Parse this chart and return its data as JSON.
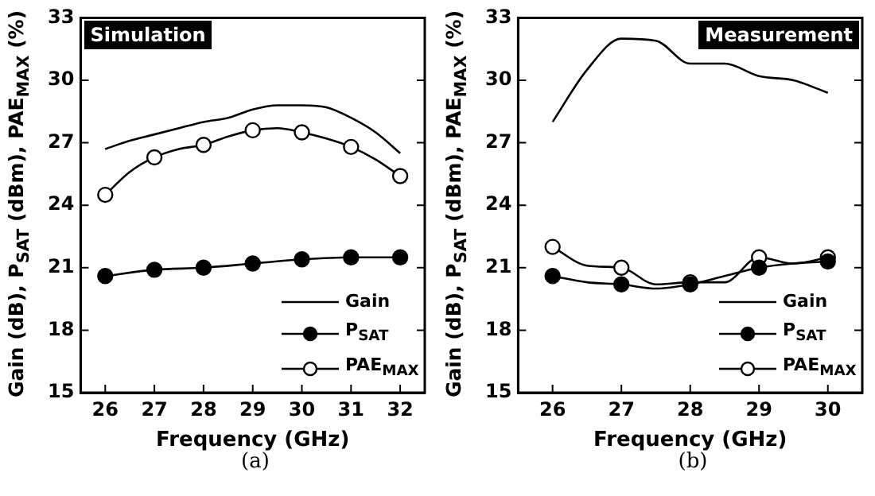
{
  "chart_data": [
    {
      "type": "line",
      "title": "Simulation",
      "xlabel": "Frequency (GHz)",
      "ylabel": "Gain (dB), P$_{SAT}$ (dBm), PAE$_{MAX}$ (%)",
      "annotations": [
        "(a)"
      ],
      "xlim": [
        25.5,
        32.5
      ],
      "xticks": [
        26,
        27,
        28,
        29,
        30,
        31,
        32
      ],
      "ylim": [
        15,
        33
      ],
      "yticks": [
        15,
        18,
        21,
        24,
        27,
        30,
        33
      ],
      "grid": false,
      "legend": "bottom right",
      "series": [
        {
          "name": "Gain",
          "color": "#000000",
          "marker": "none",
          "x": [
            26,
            26.5,
            27,
            27.5,
            28,
            28.5,
            29,
            29.5,
            30,
            30.5,
            31,
            31.5,
            32
          ],
          "values": [
            26.7,
            27.1,
            27.4,
            27.7,
            28.0,
            28.2,
            28.6,
            28.8,
            28.8,
            28.7,
            28.2,
            27.5,
            26.5
          ]
        },
        {
          "name": "P$_{SAT}$",
          "color": "#000000",
          "marker": "circle",
          "x": [
            26,
            27,
            28,
            29,
            30,
            31,
            32
          ],
          "values": [
            20.6,
            20.9,
            21.0,
            21.2,
            21.4,
            21.5,
            21.5
          ]
        },
        {
          "name": "PAE$_{MAX}$",
          "color": "#000000",
          "marker": "circle",
          "x": [
            26,
            26.5,
            27,
            27.5,
            28,
            28.5,
            29,
            29.5,
            30,
            30.5,
            31,
            31.5,
            32
          ],
          "values": [
            24.5,
            25.6,
            26.3,
            26.7,
            26.9,
            27.3,
            27.6,
            27.7,
            27.5,
            27.2,
            26.8,
            26.2,
            25.4
          ]
        }
      ]
    },
    {
      "type": "line",
      "title": "Measurement",
      "xlabel": "Frequency (GHz)",
      "ylabel": "Gain (dB), P$_{SAT}$ (dBm), PAE$_{MAX}$ (%)",
      "annotations": [
        "(b)"
      ],
      "xlim": [
        25.5,
        30.5
      ],
      "xticks": [
        26,
        27,
        28,
        29,
        30
      ],
      "ylim": [
        15,
        33
      ],
      "yticks": [
        15,
        18,
        21,
        24,
        27,
        30,
        33
      ],
      "grid": false,
      "legend": "bottom right",
      "series": [
        {
          "name": "Gain",
          "color": "#000000",
          "marker": "none",
          "x": [
            26,
            26.5,
            27,
            27.5,
            28,
            28.5,
            29,
            29.5,
            30
          ],
          "values": [
            28.0,
            30.5,
            32.0,
            31.9,
            30.8,
            30.8,
            30.2,
            30.0,
            29.4
          ]
        },
        {
          "name": "P$_{SAT}$",
          "color": "#000000",
          "marker": "circle",
          "x": [
            26,
            26.5,
            27,
            27.5,
            28,
            28.5,
            29,
            29.5,
            30
          ],
          "values": [
            20.6,
            20.3,
            20.2,
            20.0,
            20.2,
            20.6,
            21.0,
            21.2,
            21.3
          ]
        },
        {
          "name": "PAE$_{MAX}$",
          "color": "#000000",
          "marker": "circle",
          "x": [
            26,
            26.5,
            27,
            27.5,
            28,
            28.5,
            29,
            29.5,
            30
          ],
          "values": [
            22.0,
            21.1,
            21.0,
            20.2,
            20.3,
            20.3,
            21.5,
            21.2,
            21.5
          ]
        }
      ]
    }
  ]
}
